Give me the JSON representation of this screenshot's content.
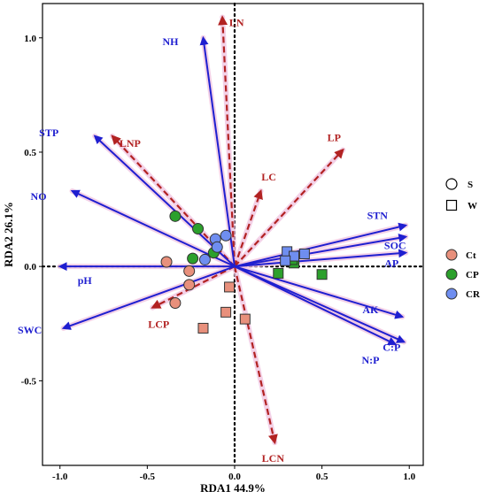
{
  "chart_data": {
    "type": "scatter",
    "subtype": "rda-biplot",
    "xlabel": "RDA1 44.9%",
    "ylabel": "RDA2 26.1%",
    "xlim": [
      -1.1,
      1.08
    ],
    "ylim": [
      -0.87,
      1.15
    ],
    "xticks": [
      -1.0,
      -0.5,
      0.0,
      0.5,
      1.0
    ],
    "yticks": [
      -0.5,
      0.0,
      0.5,
      1.0
    ],
    "xtick_labels": [
      "-1.0",
      "-0.5",
      "0.0",
      "0.5",
      "1.0"
    ],
    "ytick_labels": [
      "-0.5",
      "0.0",
      "0.5",
      "1.0"
    ],
    "grid": false,
    "zero_lines": "dotted",
    "blue_vectors": [
      {
        "label": "NH",
        "x": -0.18,
        "y": 1.0
      },
      {
        "label": "STP",
        "x": -0.8,
        "y": 0.57
      },
      {
        "label": "NO",
        "x": -0.93,
        "y": 0.33
      },
      {
        "label": "pH",
        "x": -1.0,
        "y": 0.0
      },
      {
        "label": "SWC",
        "x": -0.98,
        "y": -0.27
      },
      {
        "label": "STN",
        "x": 0.98,
        "y": 0.18
      },
      {
        "label": "SOC",
        "x": 0.98,
        "y": 0.13
      },
      {
        "label": "AP",
        "x": 0.98,
        "y": 0.06
      },
      {
        "label": "AK",
        "x": 0.96,
        "y": -0.22
      },
      {
        "label": "C:P",
        "x": 0.97,
        "y": -0.33
      },
      {
        "label": "N:P",
        "x": 0.92,
        "y": -0.34
      }
    ],
    "red_vectors": [
      {
        "label": "LN",
        "x": -0.07,
        "y": 1.09
      },
      {
        "label": "LNP",
        "x": -0.7,
        "y": 0.57
      },
      {
        "label": "LP",
        "x": 0.62,
        "y": 0.51
      },
      {
        "label": "LC",
        "x": 0.15,
        "y": 0.33
      },
      {
        "label": "LCP",
        "x": -0.47,
        "y": -0.18
      },
      {
        "label": "LCN",
        "x": 0.23,
        "y": -0.77
      }
    ],
    "points": [
      {
        "group": "Ct",
        "season": "S",
        "x": -0.39,
        "y": 0.02
      },
      {
        "group": "Ct",
        "season": "S",
        "x": -0.26,
        "y": -0.02
      },
      {
        "group": "Ct",
        "season": "S",
        "x": -0.26,
        "y": -0.08
      },
      {
        "group": "Ct",
        "season": "S",
        "x": -0.34,
        "y": -0.16
      },
      {
        "group": "CP",
        "season": "S",
        "x": -0.34,
        "y": 0.22
      },
      {
        "group": "CP",
        "season": "S",
        "x": -0.21,
        "y": 0.165
      },
      {
        "group": "CP",
        "season": "S",
        "x": -0.24,
        "y": 0.035
      },
      {
        "group": "CP",
        "season": "S",
        "x": -0.12,
        "y": 0.06
      },
      {
        "group": "CR",
        "season": "S",
        "x": -0.11,
        "y": 0.12
      },
      {
        "group": "CR",
        "season": "S",
        "x": -0.05,
        "y": 0.135
      },
      {
        "group": "CR",
        "season": "S",
        "x": -0.1,
        "y": 0.085
      },
      {
        "group": "CR",
        "season": "S",
        "x": -0.17,
        "y": 0.03
      },
      {
        "group": "Ct",
        "season": "W",
        "x": -0.03,
        "y": -0.09
      },
      {
        "group": "Ct",
        "season": "W",
        "x": -0.05,
        "y": -0.2
      },
      {
        "group": "Ct",
        "season": "W",
        "x": -0.18,
        "y": -0.27
      },
      {
        "group": "Ct",
        "season": "W",
        "x": 0.06,
        "y": -0.23
      },
      {
        "group": "CP",
        "season": "W",
        "x": 0.25,
        "y": -0.03
      },
      {
        "group": "CP",
        "season": "W",
        "x": 0.5,
        "y": -0.035
      },
      {
        "group": "CP",
        "season": "W",
        "x": 0.34,
        "y": 0.015
      },
      {
        "group": "CP",
        "season": "W",
        "x": 0.33,
        "y": 0.03
      },
      {
        "group": "CR",
        "season": "W",
        "x": 0.3,
        "y": 0.065
      },
      {
        "group": "CR",
        "season": "W",
        "x": 0.4,
        "y": 0.055
      },
      {
        "group": "CR",
        "season": "W",
        "x": 0.34,
        "y": 0.045
      },
      {
        "group": "CR",
        "season": "W",
        "x": 0.29,
        "y": 0.025
      }
    ],
    "legend": {
      "placement": "right",
      "shapes": [
        {
          "label": "S",
          "shape": "circle"
        },
        {
          "label": "W",
          "shape": "square"
        }
      ],
      "groups": [
        {
          "label": "Ct",
          "color": "#e8907c"
        },
        {
          "label": "CP",
          "color": "#2ca02c"
        },
        {
          "label": "CR",
          "color": "#6f8ef0"
        }
      ]
    },
    "colors": {
      "blue_vector": "#1f1fd0",
      "red_vector": "#b22222",
      "halo": "#f0c2e0"
    }
  }
}
